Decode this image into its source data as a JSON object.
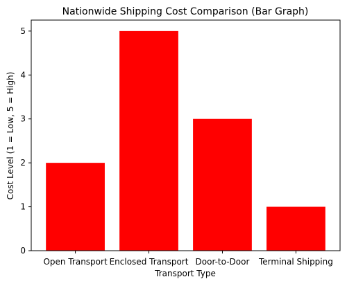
{
  "chart_data": {
    "type": "bar",
    "title": "Nationwide Shipping Cost Comparison (Bar Graph)",
    "xlabel": "Transport Type",
    "ylabel": "Cost Level (1 = Low, 5 = High)",
    "categories": [
      "Open Transport",
      "Enclosed Transport",
      "Door-to-Door",
      "Terminal Shipping"
    ],
    "values": [
      2,
      5,
      3,
      1
    ],
    "ylim": [
      0,
      5.25
    ],
    "yticks": [
      0,
      1,
      2,
      3,
      4,
      5
    ],
    "bar_color": "#ff0000",
    "grid": false,
    "legend": "none"
  }
}
